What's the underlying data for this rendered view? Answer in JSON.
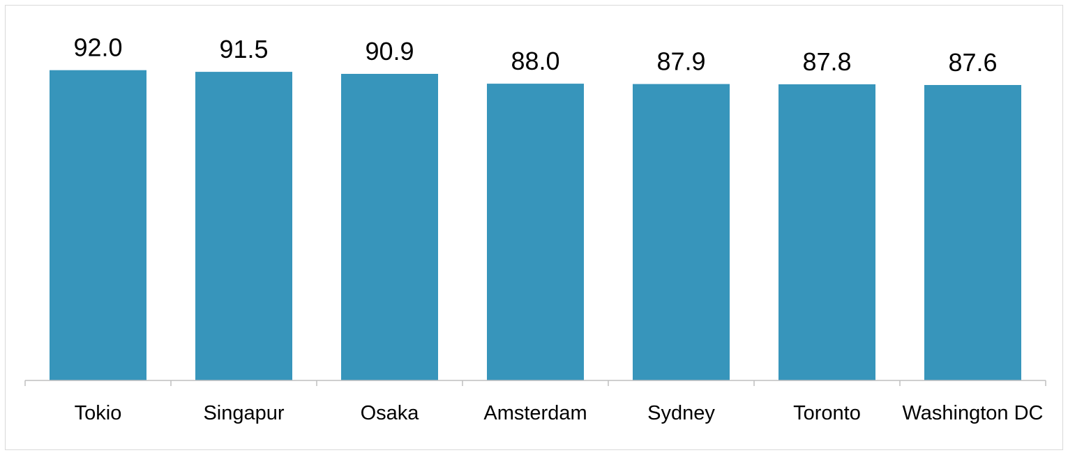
{
  "chart_data": {
    "type": "bar",
    "categories": [
      "Tokio",
      "Singapur",
      "Osaka",
      "Amsterdam",
      "Sydney",
      "Toronto",
      "Washington DC"
    ],
    "values": [
      92.0,
      91.5,
      90.9,
      88.0,
      87.9,
      87.8,
      87.6
    ],
    "data_labels": [
      "92.0",
      "91.5",
      "90.9",
      "88.0",
      "87.9",
      "87.8",
      "87.6"
    ],
    "title": "",
    "xlabel": "",
    "ylabel": "",
    "ylim": [
      0,
      100
    ],
    "grid": false,
    "legend": "none",
    "colors": {
      "bar": "#3795bb",
      "axis": "#bfbfbf"
    }
  }
}
